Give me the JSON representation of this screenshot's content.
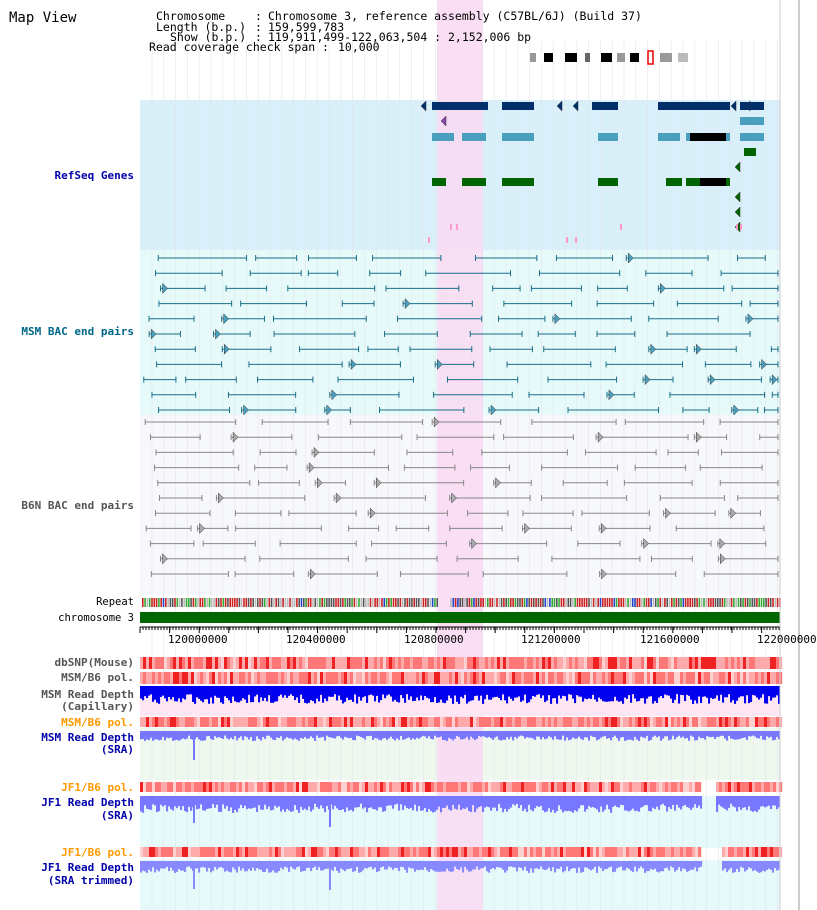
{
  "app": {
    "title": "Map View"
  },
  "info": {
    "chromosome_key": "Chromosome",
    "chromosome_val": "Chromosome 3, reference assembly (C57BL/6J) (Build 37)",
    "length_key": "Length (b.p.)",
    "length_val": "159,599,783",
    "show_key": "Show (b.p.)",
    "show_val": "119,911,499-122,063,504 : 2,152,006 bp",
    "coverage_key": "Read coverage check span",
    "coverage_val": "10,000"
  },
  "tracks": {
    "refseq": "RefSeq Genes",
    "msm_bac": "MSM BAC end pairs",
    "b6n_bac": "B6N BAC end pairs",
    "repeat": "Repeat",
    "chromosome": "chromosome 3",
    "dbsnp": "dbSNP(Mouse)",
    "msm_b6_pol_1": "MSM/B6 pol.",
    "msm_read_depth_cap_1": "MSM Read Depth",
    "msm_read_depth_cap_2": "(Capillary)",
    "msm_b6_pol_2": "MSM/B6 pol.",
    "msm_read_depth_sra_1": "MSM Read Depth",
    "msm_read_depth_sra_2": "(SRA)",
    "jf1_b6_pol_1": "JF1/B6 pol.",
    "jf1_read_depth_sra_1": "JF1 Read Depth",
    "jf1_read_depth_sra_2": "(SRA)",
    "jf1_b6_pol_2": "JF1/B6 pol.",
    "jf1_read_depth_trim_1": "JF1 Read Depth",
    "jf1_read_depth_trim_2": "(SRA trimmed)"
  },
  "axis": {
    "ticks": [
      "120000000",
      "120400000",
      "120800000",
      "121200000",
      "121600000",
      "122000000"
    ],
    "tick_values": [
      120000000,
      120400000,
      120800000,
      121200000,
      121600000,
      122000000
    ]
  },
  "colors": {
    "refseq_bg": "#d9f0fa",
    "msm_bg": "#e6fafa",
    "b6n_bg": "#f7f8fb",
    "highlight": "#f9d9f2",
    "label_blue": "#0000aa",
    "label_teal": "#006688",
    "label_orange": "#ff9900",
    "navy_gene": "#002f6c",
    "teal_gene": "#4a9fbf",
    "green_gene": "#006400",
    "chrom_green": "#006600"
  }
}
